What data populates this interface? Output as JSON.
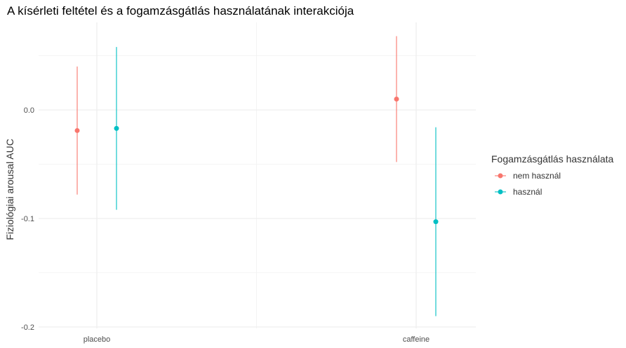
{
  "chart_data": {
    "type": "errorbar",
    "title": "A kísérleti feltétel és a fogamzásgátlás használatának interakciója",
    "xlabel": "",
    "ylabel": "Fiziológiai arousal AUC",
    "categories": [
      "placebo",
      "caffeine"
    ],
    "yticks": [
      0.0,
      -0.1,
      -0.2
    ],
    "ytick_labels": [
      "0.0",
      "-0.1",
      "-0.2"
    ],
    "ylim": [
      -0.202,
      0.08
    ],
    "grid": true,
    "legend": {
      "title": "Fogamzásgátlás használata",
      "position": "right"
    },
    "series": [
      {
        "name": "nem használ",
        "color": "#F8766D",
        "points": [
          {
            "category": "placebo",
            "y": -0.019,
            "ymin": -0.078,
            "ymax": 0.04
          },
          {
            "category": "caffeine",
            "y": 0.01,
            "ymin": -0.048,
            "ymax": 0.068
          }
        ]
      },
      {
        "name": "használ",
        "color": "#00BFC4",
        "points": [
          {
            "category": "placebo",
            "y": -0.017,
            "ymin": -0.092,
            "ymax": 0.058
          },
          {
            "category": "caffeine",
            "y": -0.103,
            "ymin": -0.19,
            "ymax": -0.016
          }
        ]
      }
    ]
  }
}
